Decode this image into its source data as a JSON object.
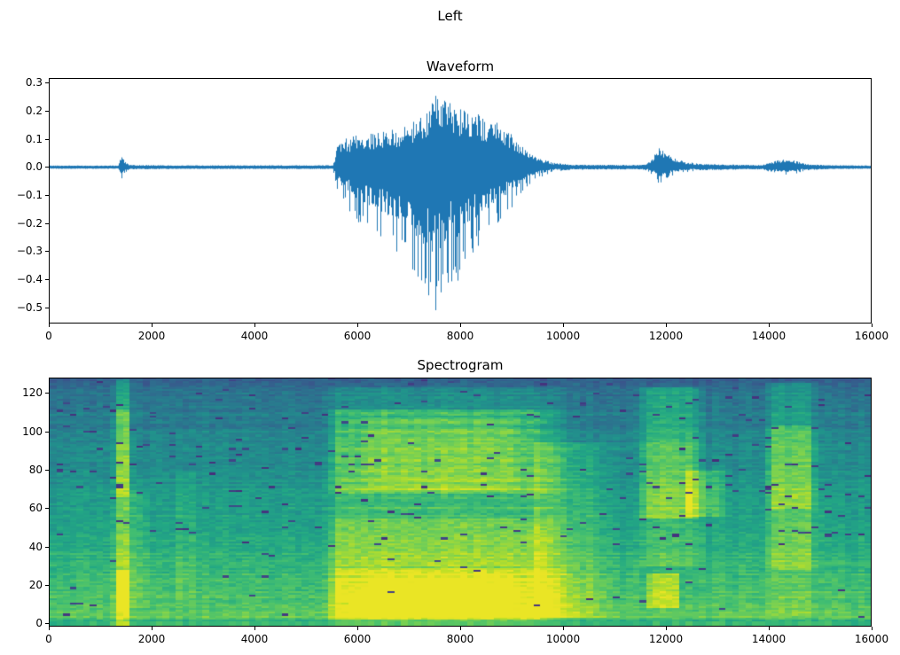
{
  "figure": {
    "suptitle": "Left",
    "background_color": "#ffffff",
    "text_color": "#000000"
  },
  "chart_data": [
    {
      "type": "line",
      "title": "Waveform",
      "xlabel": "",
      "ylabel": "",
      "line_color": "#1f77b4",
      "xlim": [
        0,
        16000
      ],
      "ylim": [
        -0.5575,
        0.3166
      ],
      "xticks": [
        0,
        2000,
        4000,
        6000,
        8000,
        10000,
        12000,
        14000,
        16000
      ],
      "xtick_labels": [
        "0",
        "2000",
        "4000",
        "6000",
        "8000",
        "10000",
        "12000",
        "14000",
        "16000"
      ],
      "yticks": [
        0.3,
        0.2,
        0.1,
        0.0,
        -0.1,
        -0.2,
        -0.3,
        -0.4,
        -0.5
      ],
      "ytick_labels": [
        "0.3",
        "0.2",
        "0.1",
        "0.0",
        "−0.1",
        "−0.2",
        "−0.3",
        "−0.4",
        "−0.5"
      ],
      "grid": false,
      "legend": "none",
      "signal_stats": {
        "peak_positive": 0.27,
        "peak_negative": -0.52,
        "n_samples": 16000
      },
      "envelope": [
        [
          0,
          0.004,
          0.004
        ],
        [
          1330,
          0.004,
          0.004
        ],
        [
          1390,
          0.042,
          0.048
        ],
        [
          1450,
          0.02,
          0.02
        ],
        [
          1560,
          0.006,
          0.006
        ],
        [
          2500,
          0.0045,
          0.0045
        ],
        [
          5520,
          0.005,
          0.005
        ],
        [
          5600,
          0.07,
          0.09
        ],
        [
          5750,
          0.1,
          0.13
        ],
        [
          6000,
          0.115,
          0.2
        ],
        [
          6300,
          0.12,
          0.24
        ],
        [
          6600,
          0.13,
          0.29
        ],
        [
          6900,
          0.14,
          0.32
        ],
        [
          7150,
          0.17,
          0.42
        ],
        [
          7350,
          0.21,
          0.5
        ],
        [
          7550,
          0.27,
          0.515
        ],
        [
          7750,
          0.235,
          0.43
        ],
        [
          7950,
          0.22,
          0.42
        ],
        [
          8150,
          0.21,
          0.34
        ],
        [
          8450,
          0.18,
          0.27
        ],
        [
          8750,
          0.16,
          0.2
        ],
        [
          9000,
          0.12,
          0.15
        ],
        [
          9250,
          0.065,
          0.075
        ],
        [
          9500,
          0.035,
          0.04
        ],
        [
          9800,
          0.015,
          0.015
        ],
        [
          10200,
          0.007,
          0.007
        ],
        [
          11550,
          0.006,
          0.006
        ],
        [
          11700,
          0.018,
          0.018
        ],
        [
          11880,
          0.068,
          0.06
        ],
        [
          12000,
          0.05,
          0.045
        ],
        [
          12150,
          0.032,
          0.028
        ],
        [
          12400,
          0.018,
          0.016
        ],
        [
          12700,
          0.009,
          0.009
        ],
        [
          13900,
          0.006,
          0.006
        ],
        [
          14100,
          0.018,
          0.018
        ],
        [
          14300,
          0.028,
          0.028
        ],
        [
          14550,
          0.022,
          0.022
        ],
        [
          14750,
          0.009,
          0.009
        ],
        [
          15200,
          0.005,
          0.005
        ],
        [
          16000,
          0.004,
          0.004
        ]
      ]
    },
    {
      "type": "heatmap",
      "title": "Spectrogram",
      "xlabel": "",
      "ylabel": "",
      "colormap": "viridis",
      "colormap_stops": [
        [
          0.0,
          "#440154"
        ],
        [
          0.1,
          "#482475"
        ],
        [
          0.2,
          "#414487"
        ],
        [
          0.3,
          "#355f8d"
        ],
        [
          0.4,
          "#2a788e"
        ],
        [
          0.5,
          "#21918c"
        ],
        [
          0.6,
          "#22a884"
        ],
        [
          0.7,
          "#44bf70"
        ],
        [
          0.8,
          "#7ad151"
        ],
        [
          0.9,
          "#bddf26"
        ],
        [
          1.0,
          "#fde725"
        ]
      ],
      "xlim": [
        0,
        16000
      ],
      "ylim": [
        -1.8,
        128
      ],
      "xticks": [
        0,
        2000,
        4000,
        6000,
        8000,
        10000,
        12000,
        14000,
        16000
      ],
      "xtick_labels": [
        "0",
        "2000",
        "4000",
        "6000",
        "8000",
        "10000",
        "12000",
        "14000",
        "16000"
      ],
      "yticks": [
        0,
        20,
        40,
        60,
        80,
        100,
        120
      ],
      "ytick_labels": [
        "0",
        "20",
        "40",
        "60",
        "80",
        "100",
        "120"
      ],
      "grid_cells": {
        "cols": 124,
        "rows": 129
      },
      "background_profile": {
        "value_at_f0": 0.76,
        "value_at_fmax": 0.36,
        "exponent": 0.9,
        "fmax": 128
      },
      "noise": {
        "cell": 0.1,
        "row": 0.07,
        "col": 0.04,
        "fleck_prob_high": 0.022,
        "fleck_prob_low": 0.006,
        "fleck_value": 0.13
      },
      "edge_darkening": {
        "top_f": 122,
        "top_delta": -0.1,
        "bottom_f": 1.5,
        "bottom_delta": -0.12
      },
      "harmonic_stripes": [
        {
          "f_min": 0,
          "f_max": 30,
          "amplitude": 0.07,
          "angular_freq": 2.3,
          "phase": 0.0
        },
        {
          "f_min": 60,
          "f_max": 112,
          "amplitude": 0.03,
          "angular_freq": 1.25,
          "phase": 2.0
        }
      ],
      "events": [
        {
          "name": "click-1400",
          "t0": 1280,
          "t1": 1540,
          "attack": 60,
          "release": 80,
          "bands": [
            [
              0,
              128,
              0.2
            ],
            [
              66,
              112,
              0.13
            ],
            [
              6,
              28,
              0.16
            ]
          ]
        },
        {
          "name": "faint-1700",
          "t0": 1560,
          "t1": 1860,
          "attack": 80,
          "release": 120,
          "bands": [
            [
              8,
              70,
              0.07
            ]
          ]
        },
        {
          "name": "faint-2600",
          "t0": 2480,
          "t1": 2780,
          "attack": 100,
          "release": 120,
          "bands": [
            [
              10,
              80,
              0.05
            ]
          ]
        },
        {
          "name": "main-burst",
          "t0": 5560,
          "t1": 9450,
          "attack": 160,
          "release": 800,
          "bands": [
            [
              2,
              28,
              0.3
            ],
            [
              28,
              55,
              0.21
            ],
            [
              55,
              68,
              0.12
            ],
            [
              68,
              112,
              0.25
            ],
            [
              112,
              124,
              0.1
            ],
            [
              0,
              2,
              0.08
            ]
          ]
        },
        {
          "name": "burst-core",
          "t0": 6280,
          "t1": 8900,
          "attack": 300,
          "release": 400,
          "bands": [
            [
              3,
              26,
              0.07
            ],
            [
              70,
              108,
              0.07
            ]
          ]
        },
        {
          "name": "burst-tail",
          "t0": 9450,
          "t1": 10500,
          "attack": 10,
          "release": 600,
          "bands": [
            [
              25,
              95,
              0.1
            ],
            [
              3,
              25,
              0.12
            ]
          ]
        },
        {
          "name": "event-12000",
          "t0": 11600,
          "t1": 12520,
          "attack": 120,
          "release": 260,
          "bands": [
            [
              55,
              96,
              0.26
            ],
            [
              96,
              124,
              0.2
            ],
            [
              30,
              55,
              0.1
            ]
          ]
        },
        {
          "name": "event-12000-low",
          "t0": 11700,
          "t1": 12180,
          "attack": 90,
          "release": 140,
          "bands": [
            [
              8,
              26,
              0.2
            ]
          ]
        },
        {
          "name": "wedge-12600",
          "t0": 12380,
          "t1": 12980,
          "attack": 60,
          "release": 300,
          "bands": [
            [
              56,
              80,
              0.15
            ]
          ]
        },
        {
          "name": "event-14300",
          "t0": 14060,
          "t1": 14800,
          "attack": 100,
          "release": 160,
          "bands": [
            [
              28,
              60,
              0.17
            ],
            [
              60,
              104,
              0.28
            ],
            [
              104,
              126,
              0.14
            ],
            [
              4,
              28,
              0.06
            ]
          ]
        }
      ]
    }
  ]
}
